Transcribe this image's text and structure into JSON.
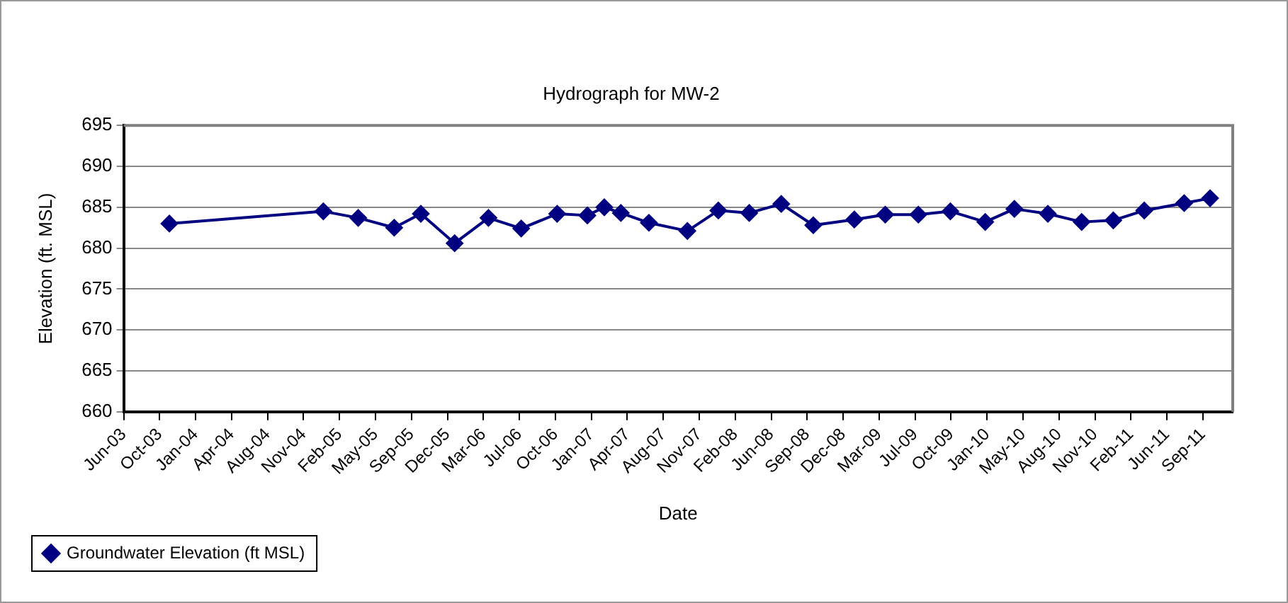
{
  "chart_data": {
    "type": "line",
    "title": "Hydrograph for MW-2",
    "xlabel": "Date",
    "ylabel": "Elevation (ft. MSL)",
    "x": [
      "2003-11-02",
      "2005-01-03",
      "2005-04-10",
      "2005-07-19",
      "2005-10-01",
      "2006-01-03",
      "2006-04-07",
      "2006-07-07",
      "2006-10-15",
      "2007-01-07",
      "2007-02-23",
      "2007-04-10",
      "2007-06-27",
      "2007-10-12",
      "2008-01-06",
      "2008-04-01",
      "2008-06-29",
      "2008-09-26",
      "2009-01-18",
      "2009-04-14",
      "2009-07-15",
      "2009-10-12",
      "2010-01-17",
      "2010-04-08",
      "2010-07-10",
      "2010-10-12",
      "2011-01-08",
      "2011-04-04",
      "2011-07-24",
      "2011-10-04"
    ],
    "series": [
      {
        "name": "Groundwater Elevation (ft MSL)",
        "color": "#000080",
        "values": [
          683.0,
          684.5,
          683.7,
          682.5,
          684.2,
          680.6,
          683.7,
          682.4,
          684.2,
          684.0,
          685.0,
          684.3,
          683.1,
          682.1,
          684.6,
          684.3,
          685.4,
          682.8,
          683.5,
          684.1,
          684.1,
          684.5,
          683.2,
          684.8,
          684.2,
          683.2,
          683.4,
          684.6,
          685.5,
          686.1
        ]
      }
    ],
    "xlim": [
      "2003-06-28",
      "2011-12-06"
    ],
    "xticks": [
      {
        "value": "2003-06-28",
        "label": "Jun-03"
      },
      {
        "value": "2003-10-06",
        "label": "Oct-03"
      },
      {
        "value": "2004-01-14",
        "label": "Jan-04"
      },
      {
        "value": "2004-04-23",
        "label": "Apr-04"
      },
      {
        "value": "2004-08-01",
        "label": "Aug-04"
      },
      {
        "value": "2004-11-09",
        "label": "Nov-04"
      },
      {
        "value": "2005-02-17",
        "label": "Feb-05"
      },
      {
        "value": "2005-05-28",
        "label": "May-05"
      },
      {
        "value": "2005-09-05",
        "label": "Sep-05"
      },
      {
        "value": "2005-12-14",
        "label": "Dec-05"
      },
      {
        "value": "2006-03-24",
        "label": "Mar-06"
      },
      {
        "value": "2006-07-02",
        "label": "Jul-06"
      },
      {
        "value": "2006-10-10",
        "label": "Oct-06"
      },
      {
        "value": "2007-01-18",
        "label": "Jan-07"
      },
      {
        "value": "2007-04-28",
        "label": "Apr-07"
      },
      {
        "value": "2007-08-06",
        "label": "Aug-07"
      },
      {
        "value": "2007-11-14",
        "label": "Nov-07"
      },
      {
        "value": "2008-02-22",
        "label": "Feb-08"
      },
      {
        "value": "2008-06-01",
        "label": "Jun-08"
      },
      {
        "value": "2008-09-09",
        "label": "Sep-08"
      },
      {
        "value": "2008-12-18",
        "label": "Dec-08"
      },
      {
        "value": "2009-03-28",
        "label": "Mar-09"
      },
      {
        "value": "2009-07-06",
        "label": "Jul-09"
      },
      {
        "value": "2009-10-14",
        "label": "Oct-09"
      },
      {
        "value": "2010-01-22",
        "label": "Jan-10"
      },
      {
        "value": "2010-05-02",
        "label": "May-10"
      },
      {
        "value": "2010-08-10",
        "label": "Aug-10"
      },
      {
        "value": "2010-11-18",
        "label": "Nov-10"
      },
      {
        "value": "2011-02-26",
        "label": "Feb-11"
      },
      {
        "value": "2011-06-06",
        "label": "Jun-11"
      },
      {
        "value": "2011-09-14",
        "label": "Sep-11"
      }
    ],
    "ylim": [
      660,
      695
    ],
    "yticks": [
      660,
      665,
      670,
      675,
      680,
      685,
      690,
      695
    ],
    "grid": "y",
    "legend": "bottom",
    "marker": "diamond",
    "line_style": "solid"
  }
}
